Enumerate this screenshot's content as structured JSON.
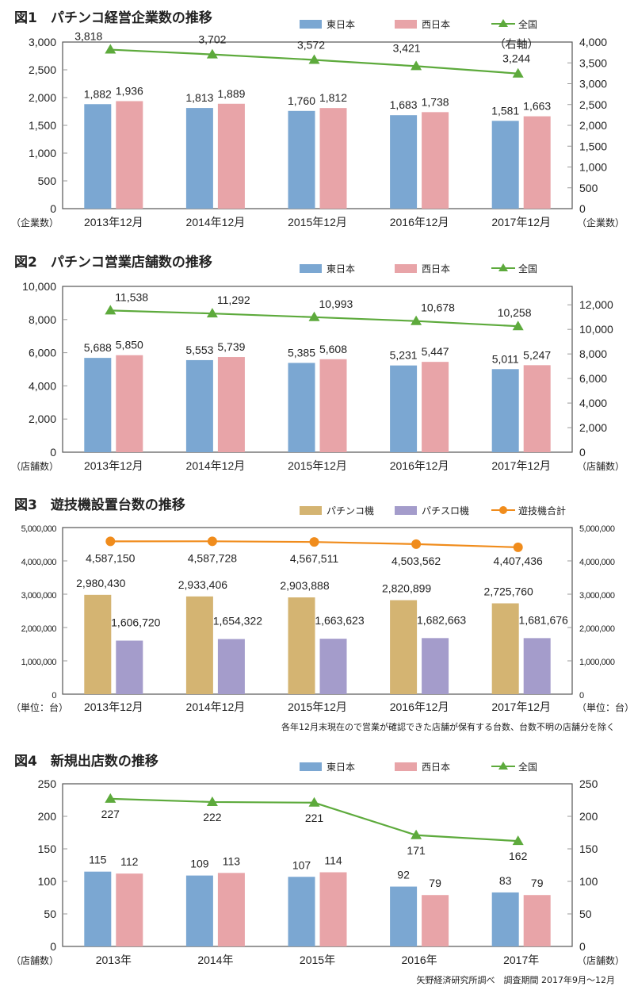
{
  "colors": {
    "east": "#7ba7d2",
    "west": "#e8a4a8",
    "national": "#5daa3c",
    "pachinko": "#d4b472",
    "pachislot": "#a49ccb",
    "total": "#f08c1c",
    "axis": "#555555"
  },
  "chart_data": [
    {
      "type": "bar",
      "title": "図1　パチンコ経営企業数の推移",
      "categories": [
        "2013年12月",
        "2014年12月",
        "2015年12月",
        "2016年12月",
        "2017年12月"
      ],
      "series": [
        {
          "name": "東日本",
          "kind": "bar",
          "axis": "left",
          "values": [
            1882,
            1813,
            1760,
            1683,
            1581
          ],
          "labels": [
            "1,882",
            "1,813",
            "1,760",
            "1,683",
            "1,581"
          ]
        },
        {
          "name": "西日本",
          "kind": "bar",
          "axis": "left",
          "values": [
            1936,
            1889,
            1812,
            1738,
            1663
          ],
          "labels": [
            "1,936",
            "1,889",
            "1,812",
            "1,738",
            "1,663"
          ]
        },
        {
          "name": "全国",
          "kind": "line",
          "marker": "triangle",
          "axis": "right",
          "values": [
            3818,
            3702,
            3572,
            3421,
            3244
          ],
          "labels": [
            "3,818",
            "3,702",
            "3,572",
            "3,421",
            "3,244"
          ]
        }
      ],
      "ylim": [
        0,
        3000
      ],
      "yticks": [
        "0",
        "500",
        "1,000",
        "1,500",
        "2,000",
        "2,500",
        "3,000"
      ],
      "y2lim": [
        0,
        4000
      ],
      "y2ticks": [
        "0",
        "500",
        "1,000",
        "1,500",
        "2,000",
        "2,500",
        "3,000",
        "3,500",
        "4,000"
      ],
      "ylabel": "（企業数）",
      "y2label": "（企業数）",
      "annotation": "（右軸）",
      "legend": "top-right"
    },
    {
      "type": "bar",
      "title": "図2　パチンコ営業店舗数の推移",
      "categories": [
        "2013年12月",
        "2014年12月",
        "2015年12月",
        "2016年12月",
        "2017年12月"
      ],
      "series": [
        {
          "name": "東日本",
          "kind": "bar",
          "axis": "left",
          "values": [
            5688,
            5553,
            5385,
            5231,
            5011
          ],
          "labels": [
            "5,688",
            "5,553",
            "5,385",
            "5,231",
            "5,011"
          ]
        },
        {
          "name": "西日本",
          "kind": "bar",
          "axis": "left",
          "values": [
            5850,
            5739,
            5608,
            5447,
            5247
          ],
          "labels": [
            "5,850",
            "5,739",
            "5,608",
            "5,447",
            "5,247"
          ]
        },
        {
          "name": "全国",
          "kind": "line",
          "marker": "triangle",
          "axis": "right",
          "values": [
            11538,
            11292,
            10993,
            10678,
            10258
          ],
          "labels": [
            "11,538",
            "11,292",
            "10,993",
            "10,678",
            "10,258"
          ]
        }
      ],
      "ylim": [
        0,
        10000
      ],
      "yticks": [
        "0",
        "2,000",
        "4,000",
        "6,000",
        "8,000",
        "10,000"
      ],
      "y2lim": [
        0,
        13500
      ],
      "y2ticks": [
        "0",
        "2,000",
        "4,000",
        "6,000",
        "8,000",
        "10,000",
        "12,000"
      ],
      "ylabel": "（店舗数）",
      "y2label": "（店舗数）",
      "legend": "top-right"
    },
    {
      "type": "bar",
      "title": "図3　遊技機設置台数の推移",
      "categories": [
        "2013年12月",
        "2014年12月",
        "2015年12月",
        "2016年12月",
        "2017年12月"
      ],
      "series": [
        {
          "name": "パチンコ機",
          "kind": "bar",
          "axis": "left",
          "values": [
            2980430,
            2933406,
            2903888,
            2820899,
            2725760
          ],
          "labels": [
            "2,980,430",
            "2,933,406",
            "2,903,888",
            "2,820,899",
            "2,725,760"
          ]
        },
        {
          "name": "パチスロ機",
          "kind": "bar",
          "axis": "left",
          "values": [
            1606720,
            1654322,
            1663623,
            1682663,
            1681676
          ],
          "labels": [
            "1,606,720",
            "1,654,322",
            "1,663,623",
            "1,682,663",
            "1,681,676"
          ]
        },
        {
          "name": "遊技機合計",
          "kind": "line",
          "marker": "circle",
          "axis": "right",
          "values": [
            4587150,
            4587728,
            4567511,
            4503562,
            4407436
          ],
          "labels": [
            "4,587,150",
            "4,587,728",
            "4,567,511",
            "4,503,562",
            "4,407,436"
          ]
        }
      ],
      "ylim": [
        0,
        5000000
      ],
      "yticks": [
        "0",
        "1,000,000",
        "2,000,000",
        "3,000,000",
        "4,000,000",
        "5,000,000"
      ],
      "y2lim": [
        0,
        5000000
      ],
      "y2ticks": [
        "0",
        "1,000,000",
        "2,000,000",
        "3,000,000",
        "4,000,000",
        "5,000,000"
      ],
      "ylabel": "（単位：台）",
      "y2label": "（単位：台）",
      "note": "各年12月末現在ので営業が確認できた店舗が保有する台数、台数不明の店舗分を除く",
      "legend": "top-right"
    },
    {
      "type": "bar",
      "title": "図4　新規出店数の推移",
      "categories": [
        "2013年",
        "2014年",
        "2015年",
        "2016年",
        "2017年"
      ],
      "series": [
        {
          "name": "東日本",
          "kind": "bar",
          "axis": "left",
          "values": [
            115,
            109,
            107,
            92,
            83
          ],
          "labels": [
            "115",
            "109",
            "107",
            "92",
            "83"
          ]
        },
        {
          "name": "西日本",
          "kind": "bar",
          "axis": "left",
          "values": [
            112,
            113,
            114,
            79,
            79
          ],
          "labels": [
            "112",
            "113",
            "114",
            "79",
            "79"
          ]
        },
        {
          "name": "全国",
          "kind": "line",
          "marker": "triangle",
          "axis": "right",
          "values": [
            227,
            222,
            221,
            171,
            162
          ],
          "labels": [
            "227",
            "222",
            "221",
            "171",
            "162"
          ]
        }
      ],
      "ylim": [
        0,
        250
      ],
      "yticks": [
        "0",
        "50",
        "100",
        "150",
        "200",
        "250"
      ],
      "y2lim": [
        0,
        250
      ],
      "y2ticks": [
        "0",
        "50",
        "100",
        "150",
        "200",
        "250"
      ],
      "ylabel": "（店舗数）",
      "y2label": "（店舗数）",
      "note": "矢野経済研究所調べ　調査期間 2017年9月～12月",
      "legend": "top-right"
    }
  ]
}
